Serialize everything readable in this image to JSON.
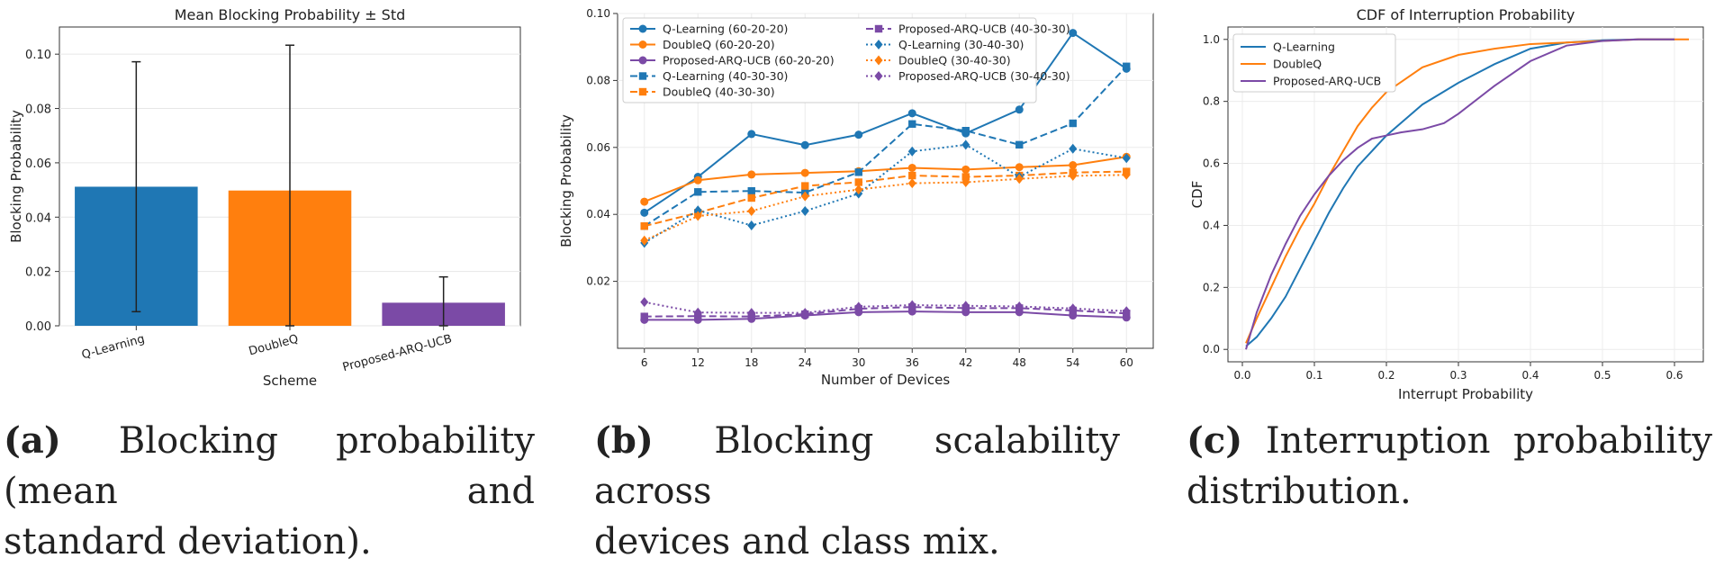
{
  "chart_data": [
    {
      "type": "bar",
      "title": "Mean Blocking Probability ± Std",
      "xlabel": "Scheme",
      "ylabel": "Blocking Probability",
      "categories": [
        "Q-Learning",
        "DoubleQ",
        "Proposed-ARQ-UCB"
      ],
      "values": [
        0.0512,
        0.0498,
        0.0085
      ],
      "std": [
        0.046,
        0.0535,
        0.0095
      ],
      "colors": [
        "#1f77b4",
        "#ff7f0e",
        "#7b4aa6"
      ],
      "ylim": [
        0,
        0.11
      ],
      "yticks": [
        "0.00",
        "0.02",
        "0.04",
        "0.06",
        "0.08",
        "0.10"
      ],
      "grid": true
    },
    {
      "type": "line",
      "xlabel": "Number of Devices",
      "ylabel": "Blocking Probability",
      "x": [
        6,
        12,
        18,
        24,
        30,
        36,
        42,
        48,
        54,
        60
      ],
      "ylim": [
        0,
        0.1
      ],
      "yticks": [
        "0.02",
        "0.04",
        "0.06",
        "0.08",
        "0.10"
      ],
      "legend": "top-left",
      "grid": true,
      "series": [
        {
          "name": "Q-Learning (60-20-20)",
          "color": "#1f77b4",
          "style": "solid",
          "marker": "circle",
          "values": [
            0.0405,
            0.0512,
            0.064,
            0.0607,
            0.0638,
            0.0702,
            0.0642,
            0.0713,
            0.0942,
            0.0835
          ]
        },
        {
          "name": "DoubleQ (60-20-20)",
          "color": "#ff7f0e",
          "style": "solid",
          "marker": "circle",
          "values": [
            0.0438,
            0.0502,
            0.0519,
            0.0524,
            0.0529,
            0.0539,
            0.0534,
            0.0541,
            0.0547,
            0.0572
          ]
        },
        {
          "name": "Proposed-ARQ-UCB (60-20-20)",
          "color": "#7b4aa6",
          "style": "solid",
          "marker": "circle",
          "values": [
            0.0085,
            0.0085,
            0.0088,
            0.0098,
            0.0108,
            0.011,
            0.0108,
            0.0108,
            0.0098,
            0.0092
          ]
        },
        {
          "name": "Q-Learning (40-30-30)",
          "color": "#1f77b4",
          "style": "dashed",
          "marker": "square",
          "values": [
            0.0365,
            0.0467,
            0.047,
            0.0465,
            0.0526,
            0.067,
            0.065,
            0.0608,
            0.0672,
            0.0842
          ]
        },
        {
          "name": "DoubleQ (40-30-30)",
          "color": "#ff7f0e",
          "style": "dashed",
          "marker": "square",
          "values": [
            0.0365,
            0.0405,
            0.0449,
            0.0485,
            0.0496,
            0.0516,
            0.0512,
            0.0516,
            0.0525,
            0.0528
          ]
        },
        {
          "name": "Proposed-ARQ-UCB (40-30-30)",
          "color": "#7b4aa6",
          "style": "dashed",
          "marker": "square",
          "values": [
            0.0095,
            0.0096,
            0.0095,
            0.0102,
            0.0118,
            0.0123,
            0.012,
            0.012,
            0.0113,
            0.0104
          ]
        },
        {
          "name": "Q-Learning (30-40-30)",
          "color": "#1f77b4",
          "style": "dotted",
          "marker": "diamond",
          "values": [
            0.0315,
            0.0412,
            0.0367,
            0.041,
            0.0462,
            0.0588,
            0.0608,
            0.0512,
            0.0596,
            0.0568
          ]
        },
        {
          "name": "DoubleQ (30-40-30)",
          "color": "#ff7f0e",
          "style": "dotted",
          "marker": "diamond",
          "values": [
            0.0322,
            0.0395,
            0.041,
            0.0454,
            0.0474,
            0.0493,
            0.0496,
            0.0506,
            0.0515,
            0.0518
          ]
        },
        {
          "name": "Proposed-ARQ-UCB (30-40-30)",
          "color": "#7b4aa6",
          "style": "dotted",
          "marker": "diamond",
          "values": [
            0.0138,
            0.0107,
            0.0106,
            0.0106,
            0.0124,
            0.0129,
            0.0127,
            0.0125,
            0.0119,
            0.0111
          ]
        }
      ]
    },
    {
      "type": "line",
      "title": "CDF of Interruption Probability",
      "xlabel": "Interrupt Probability",
      "ylabel": "CDF",
      "xlim": [
        -0.02,
        0.64
      ],
      "ylim": [
        -0.04,
        1.04
      ],
      "xticks": [
        "0.0",
        "0.1",
        "0.2",
        "0.3",
        "0.4",
        "0.5",
        "0.6"
      ],
      "yticks": [
        "0.0",
        "0.2",
        "0.4",
        "0.6",
        "0.8",
        "1.0"
      ],
      "legend": "top-left",
      "grid": true,
      "series": [
        {
          "name": "Q-Learning",
          "color": "#1f77b4",
          "x": [
            0.005,
            0.02,
            0.04,
            0.06,
            0.08,
            0.1,
            0.12,
            0.14,
            0.16,
            0.18,
            0.2,
            0.25,
            0.3,
            0.35,
            0.4,
            0.45,
            0.5,
            0.55,
            0.6
          ],
          "y": [
            0.01,
            0.04,
            0.1,
            0.17,
            0.26,
            0.35,
            0.44,
            0.52,
            0.59,
            0.64,
            0.69,
            0.79,
            0.86,
            0.92,
            0.97,
            0.99,
            0.997,
            1.0,
            1.0
          ]
        },
        {
          "name": "DoubleQ",
          "color": "#ff7f0e",
          "x": [
            0.005,
            0.02,
            0.04,
            0.06,
            0.08,
            0.1,
            0.12,
            0.14,
            0.16,
            0.18,
            0.2,
            0.25,
            0.3,
            0.35,
            0.4,
            0.45,
            0.5,
            0.55,
            0.62
          ],
          "y": [
            0.02,
            0.1,
            0.2,
            0.3,
            0.39,
            0.47,
            0.56,
            0.64,
            0.72,
            0.78,
            0.83,
            0.91,
            0.95,
            0.97,
            0.985,
            0.99,
            0.995,
            1.0,
            1.0
          ]
        },
        {
          "name": "Proposed-ARQ-UCB",
          "color": "#7b4aa6",
          "x": [
            0.005,
            0.02,
            0.04,
            0.06,
            0.08,
            0.1,
            0.12,
            0.14,
            0.16,
            0.18,
            0.2,
            0.22,
            0.25,
            0.28,
            0.3,
            0.35,
            0.4,
            0.45,
            0.5,
            0.55,
            0.6
          ],
          "y": [
            0.0,
            0.12,
            0.24,
            0.34,
            0.43,
            0.5,
            0.56,
            0.61,
            0.65,
            0.68,
            0.69,
            0.7,
            0.71,
            0.73,
            0.76,
            0.85,
            0.93,
            0.98,
            0.995,
            1.0,
            1.0
          ]
        }
      ]
    }
  ],
  "captions": [
    {
      "label": "(a)",
      "line1": "Blocking probability (mean and",
      "line2": "standard deviation)."
    },
    {
      "label": "(b)",
      "line1": "Blocking scalability across",
      "line2": "devices and class mix."
    },
    {
      "label": "(c)",
      "line1": "Interruption probability",
      "line2": "distribution."
    }
  ]
}
